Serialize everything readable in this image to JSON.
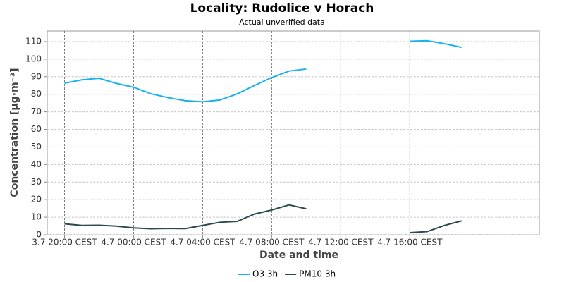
{
  "chart_data": {
    "type": "line",
    "title": "Locality: Rudolice v Horach",
    "subtitle": "Actual unverified data",
    "x_label": "Date and time",
    "y_label": "Concentration [µg·m⁻³]",
    "x": [
      "3.7 20:00 CEST",
      "3.7 21:00 CEST",
      "3.7 22:00 CEST",
      "3.7 23:00 CEST",
      "4.7 00:00 CEST",
      "4.7 01:00 CEST",
      "4.7 02:00 CEST",
      "4.7 03:00 CEST",
      "4.7 04:00 CEST",
      "4.7 05:00 CEST",
      "4.7 06:00 CEST",
      "4.7 07:00 CEST",
      "4.7 08:00 CEST",
      "4.7 09:00 CEST",
      "4.7 10:00 CEST",
      "4.7 11:00 CEST",
      "4.7 12:00 CEST",
      "4.7 13:00 CEST",
      "4.7 14:00 CEST",
      "4.7 15:00 CEST",
      "4.7 16:00 CEST",
      "4.7 17:00 CEST",
      "4.7 18:00 CEST",
      "4.7 19:00 CEST"
    ],
    "series": [
      {
        "name": "O3 3h",
        "color": "#1ab2ea",
        "values": [
          86.3,
          88.2,
          89.1,
          86.2,
          84,
          80.3,
          78.1,
          76.3,
          75.7,
          76.7,
          80.2,
          85,
          89.5,
          93.2,
          94.4,
          null,
          null,
          null,
          null,
          null,
          110.2,
          110.5,
          108.8,
          106.7
        ]
      },
      {
        "name": "PM10 3h",
        "color": "#2b4b4b",
        "values": [
          6.2,
          5.3,
          5.4,
          4.9,
          3.9,
          3.4,
          3.6,
          3.5,
          5.3,
          7.1,
          7.6,
          11.8,
          14.1,
          17,
          14.8,
          null,
          null,
          null,
          null,
          null,
          1.2,
          1.8,
          5.3,
          7.9
        ]
      }
    ],
    "xlim": [
      "3.7 19:00 CEST",
      "4.7 23:30 CEST"
    ],
    "xticks": [
      "3.7 20:00 CEST",
      "4.7 00:00 CEST",
      "4.7 04:00 CEST",
      "4.7 08:00 CEST",
      "4.7 12:00 CEST",
      "4.7 16:00 CEST"
    ],
    "ylim": [
      0,
      116
    ],
    "yticks": [
      0,
      10,
      20,
      30,
      40,
      50,
      60,
      70,
      80,
      90,
      100,
      110
    ],
    "grid": true,
    "legend": "bottom"
  }
}
